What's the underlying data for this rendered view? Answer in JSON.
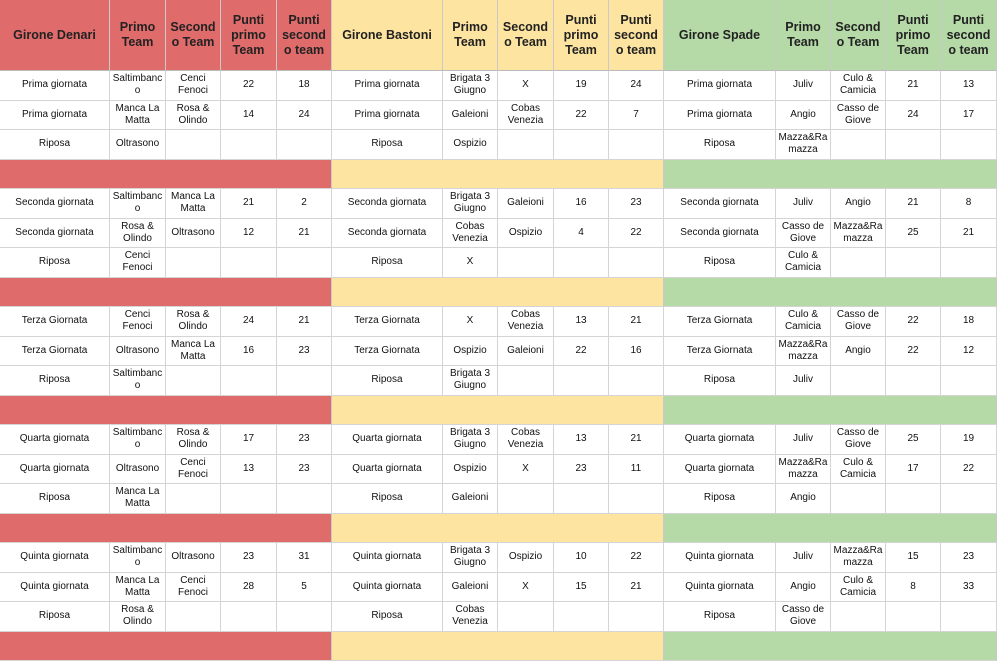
{
  "groups": [
    {
      "color": "#e06b6b",
      "header": [
        "Girone Denari",
        "Primo Team",
        "Secondo Team",
        "Punti primo Team",
        "Punti secondo team"
      ],
      "rows": [
        [
          "Prima giornata",
          "Saltimbanco",
          "Cenci Fenoci",
          22,
          18
        ],
        [
          "Prima giornata",
          "Manca La Matta",
          "Rosa & Olindo",
          14,
          24
        ],
        [
          "Riposa",
          "Oltrasono"
        ],
        [
          "Seconda giornata",
          "Saltimbanco",
          "Manca La Matta",
          21,
          2
        ],
        [
          "Seconda giornata",
          "Rosa & Olindo",
          "Oltrasono",
          12,
          21
        ],
        [
          "Riposa",
          "Cenci Fenoci"
        ],
        [
          "Terza Giornata",
          "Cenci Fenoci",
          "Rosa & Olindo",
          24,
          21
        ],
        [
          "Terza Giornata",
          "Oltrasono",
          "Manca La Matta",
          16,
          23
        ],
        [
          "Riposa",
          "Saltimbanco"
        ],
        [
          "Quarta giornata",
          "Saltimbanco",
          "Rosa & Olindo",
          17,
          23
        ],
        [
          "Quarta giornata",
          "Oltrasono",
          "Cenci Fenoci",
          13,
          23
        ],
        [
          "Riposa",
          "Manca La Matta"
        ],
        [
          "Quinta giornata",
          "Saltimbanco",
          "Oltrasono",
          23,
          31
        ],
        [
          "Quinta giornata",
          "Manca La Matta",
          "Cenci Fenoci",
          28,
          5
        ],
        [
          "Riposa",
          "Rosa & Olindo"
        ]
      ]
    },
    {
      "color": "#fde4a0",
      "header": [
        "Girone Bastoni",
        "Primo Team",
        "Secondo Team",
        "Punti primo Team",
        "Punti secondo team"
      ],
      "rows": [
        [
          "Prima giornata",
          "Brigata 3 Giugno",
          "X",
          19,
          24
        ],
        [
          "Prima giornata",
          "Galeioni",
          "Cobas Venezia",
          22,
          7
        ],
        [
          "Riposa",
          "Ospizio"
        ],
        [
          "Seconda giornata",
          "Brigata 3 Giugno",
          "Galeioni",
          16,
          23
        ],
        [
          "Seconda giornata",
          "Cobas Venezia",
          "Ospizio",
          4,
          22
        ],
        [
          "Riposa",
          "X"
        ],
        [
          "Terza Giornata",
          "X",
          "Cobas Venezia",
          13,
          21
        ],
        [
          "Terza Giornata",
          "Ospizio",
          "Galeioni",
          22,
          16
        ],
        [
          "Riposa",
          "Brigata 3 Giugno"
        ],
        [
          "Quarta giornata",
          "Brigata 3 Giugno",
          "Cobas Venezia",
          13,
          21
        ],
        [
          "Quarta giornata",
          "Ospizio",
          "X",
          23,
          11
        ],
        [
          "Riposa",
          "Galeioni"
        ],
        [
          "Quinta giornata",
          "Brigata 3 Giugno",
          "Ospizio",
          10,
          22
        ],
        [
          "Quinta giornata",
          "Galeioni",
          "X",
          15,
          21
        ],
        [
          "Riposa",
          "Cobas Venezia"
        ]
      ]
    },
    {
      "color": "#b5d9a7",
      "header": [
        "Girone Spade",
        "Primo Team",
        "Secondo Team",
        "Punti primo Team",
        "Punti secondo team"
      ],
      "rows": [
        [
          "Prima giornata",
          "Juliv",
          "Culo & Camicia",
          21,
          13
        ],
        [
          "Prima giornata",
          "Angio",
          "Casso de Giove",
          24,
          17
        ],
        [
          "Riposa",
          "Mazza&Ramazza"
        ],
        [
          "Seconda giornata",
          "Juliv",
          "Angio",
          21,
          8
        ],
        [
          "Seconda giornata",
          "Casso de Giove",
          "Mazza&Ramazza",
          25,
          21
        ],
        [
          "Riposa",
          "Culo & Camicia"
        ],
        [
          "Terza Giornata",
          "Culo & Camicia",
          "Casso de Giove",
          22,
          18
        ],
        [
          "Terza Giornata",
          "Mazza&Ramazza",
          "Angio",
          22,
          12
        ],
        [
          "Riposa",
          "Juliv"
        ],
        [
          "Quarta giornata",
          "Juliv",
          "Casso de Giove",
          25,
          19
        ],
        [
          "Quarta giornata",
          "Mazza&Ramazza",
          "Culo & Camicia",
          17,
          22
        ],
        [
          "Riposa",
          "Angio"
        ],
        [
          "Quinta giornata",
          "Juliv",
          "Mazza&Ramazza",
          15,
          23
        ],
        [
          "Quinta giornata",
          "Angio",
          "Culo & Camicia",
          8,
          33
        ],
        [
          "Riposa",
          "Casso de Giove"
        ]
      ]
    }
  ]
}
